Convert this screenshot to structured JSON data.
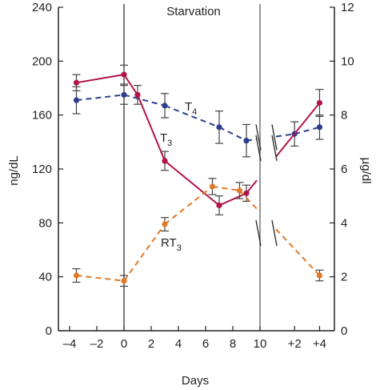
{
  "chart_data": {
    "type": "line",
    "title": "",
    "xlabel": "Days",
    "ylabel_left": "ng/dL",
    "ylabel_right": "µg/dl",
    "ylim_left": [
      0,
      240
    ],
    "ylim_right": [
      0,
      12
    ],
    "xlim": [
      -4.5,
      5.2
    ],
    "x_ticks": [
      "–4",
      "–2",
      "0",
      "2",
      "4",
      "6",
      "8",
      "10",
      "+2",
      "+4"
    ],
    "y_ticks_left": [
      "0",
      "40",
      "80",
      "120",
      "160",
      "200",
      "240"
    ],
    "y_ticks_right": [
      "0",
      "2",
      "4",
      "6",
      "8",
      "10",
      "12"
    ],
    "period_label": "Starvation",
    "period_start_day": 0,
    "period_end_day": 10,
    "axis_break_after_day": 10,
    "series": [
      {
        "name": "T4",
        "name_main": "T",
        "name_sub": "4",
        "axis": "right",
        "style": "dashed",
        "color": "#2d3f8c",
        "x_labels": [
          "–3.5",
          "0",
          "3",
          "7",
          "9",
          "+2",
          "+4"
        ],
        "y": [
          8.55,
          8.75,
          8.35,
          7.55,
          7.05,
          7.3,
          7.55
        ],
        "err": [
          0.5,
          0.35,
          0.45,
          0.6,
          0.6,
          0.45,
          0.45
        ]
      },
      {
        "name": "T3",
        "name_main": "T",
        "name_sub": "3",
        "axis": "left",
        "style": "solid",
        "color": "#b0144a",
        "x_labels": [
          "–3.5",
          "0",
          "1",
          "3",
          "7",
          "9",
          "+4"
        ],
        "y": [
          184,
          190,
          175,
          126,
          93,
          102,
          169
        ],
        "err": [
          6,
          7,
          7,
          7,
          7,
          6,
          10
        ]
      },
      {
        "name": "RT3",
        "name_main": "RT",
        "name_sub": "3",
        "axis": "left",
        "style": "dashed",
        "color": "#e07a28",
        "x_labels": [
          "–3.5",
          "0",
          "3",
          "6.5",
          "8.5",
          "+4"
        ],
        "y": [
          41,
          37,
          79,
          107,
          104,
          41
        ],
        "err": [
          5,
          4,
          5,
          6,
          6,
          4
        ]
      }
    ],
    "axis_color": "#222222"
  }
}
